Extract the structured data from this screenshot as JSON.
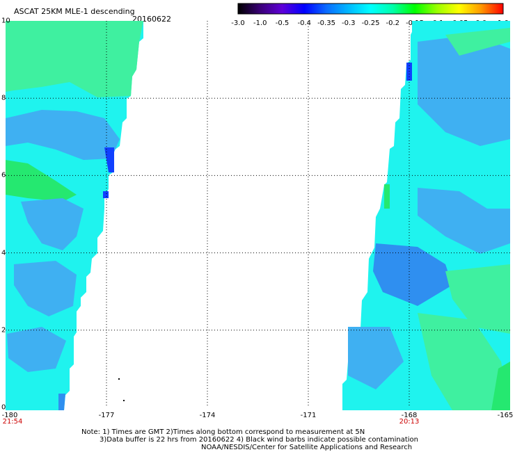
{
  "header": {
    "title": "ASCAT 25KM MLE-1 descending",
    "date": "20160622"
  },
  "colorbar": {
    "tick_labels": [
      "-3.0",
      "-1.0",
      "-0.5",
      "-0.4",
      "-0.35",
      "-0.3",
      "-0.25",
      "-0.2",
      "-0.15",
      "-0.1",
      "-0.05",
      "0.0",
      "1.0"
    ],
    "colors": [
      "#000000",
      "#3a0077",
      "#5e00d8",
      "#0000ff",
      "#0a6bff",
      "#00b8ff",
      "#00ffff",
      "#00ffaa",
      "#00ff00",
      "#99ff00",
      "#ffff00",
      "#ff9900",
      "#ff0000"
    ]
  },
  "map": {
    "x_range": [
      -180,
      -165
    ],
    "y_range": [
      0,
      10
    ],
    "x_tick_labels": [
      "-180",
      "-177",
      "-174",
      "-171",
      "-168",
      "-165"
    ],
    "y_tick_labels": [
      "0",
      "2",
      "4",
      "6",
      "8",
      "10"
    ],
    "grid_lines_x": [
      -177,
      -174,
      -171,
      -168
    ],
    "grid_lines_y": [
      2,
      4,
      6,
      8
    ],
    "grid": "dotted",
    "swath_colors": {
      "main": "#1ff3ee",
      "blue": "#3fb0f2",
      "deep_blue": "#2f8ff0",
      "green": "#3ff0a0",
      "bright_green": "#25e870",
      "dark_blue": "#1040ff"
    },
    "time_labels": [
      {
        "lon": -180,
        "text": "21:54"
      },
      {
        "lon": -168,
        "text": "20:13"
      }
    ]
  },
  "notes": {
    "line1": "Note: 1) Times are GMT 2)Times along bottom correspond to measurement at 5N",
    "line2": "3)Data buffer is 22 hrs from 20160622 4) Black wind barbs indicate possible contamination",
    "line3": "NOAA/NESDIS/Center for Satellite Applications and Research"
  }
}
